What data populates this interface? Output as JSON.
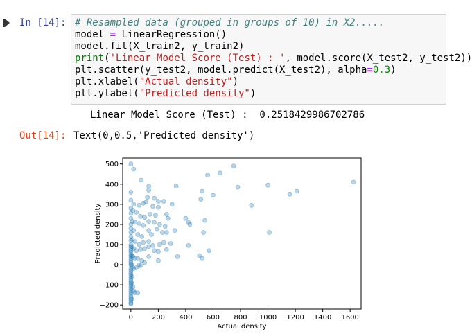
{
  "cell": {
    "in_prompt": "In [14]:",
    "code_lines": [
      [
        {
          "t": "# Resampled data (grouped in groups of 10) in X2.....",
          "c": "cm-comment"
        }
      ],
      [
        {
          "t": "model "
        },
        {
          "t": "=",
          "c": "cm-op"
        },
        {
          "t": " LinearRegression()"
        }
      ],
      [
        {
          "t": "model.fit(X_train2, y_train2)"
        }
      ],
      [
        {
          "t": "print",
          "c": "cm-builtin"
        },
        {
          "t": "("
        },
        {
          "t": "'Linear Model Score (Test) : '",
          "c": "cm-string"
        },
        {
          "t": ", model.score(X_test2, y_test2))"
        }
      ],
      [
        {
          "t": "plt.scatter(y_test2, model.predict(X_test2), alpha"
        },
        {
          "t": "=",
          "c": "cm-op"
        },
        {
          "t": "0.3",
          "c": "cm-number"
        },
        {
          "t": ")"
        }
      ],
      [
        {
          "t": "plt.xlabel("
        },
        {
          "t": "\"Actual density\"",
          "c": "cm-string"
        },
        {
          "t": ")"
        }
      ],
      [
        {
          "t": "plt.ylabel("
        },
        {
          "t": "\"Predicted density\"",
          "c": "cm-string"
        },
        {
          "t": ")"
        }
      ]
    ],
    "stdout": "Linear Model Score (Test) :  0.2518429986702786",
    "out_prompt": "Out[14]:",
    "out_text": "Text(0,0.5,'Predicted density')"
  },
  "colors": {
    "in_prompt": "#303f9f",
    "out_prompt": "#d84315",
    "marker": "#1f77b4"
  },
  "chart_data": {
    "type": "scatter",
    "xlabel": "Actual density",
    "ylabel": "Predicted density",
    "xlim": [
      -60,
      1680
    ],
    "ylim": [
      -220,
      530
    ],
    "xticks": [
      0,
      200,
      400,
      600,
      800,
      1000,
      1200,
      1400,
      1600
    ],
    "yticks": [
      -200,
      -100,
      0,
      100,
      200,
      300,
      400,
      500
    ],
    "alpha": 0.3,
    "points": [
      [
        0,
        500
      ],
      [
        20,
        475
      ],
      [
        75,
        420
      ],
      [
        0,
        360
      ],
      [
        130,
        390
      ],
      [
        130,
        370
      ],
      [
        330,
        390
      ],
      [
        560,
        445
      ],
      [
        650,
        455
      ],
      [
        750,
        490
      ],
      [
        780,
        385
      ],
      [
        1000,
        395
      ],
      [
        1625,
        410
      ],
      [
        1160,
        350
      ],
      [
        1210,
        365
      ],
      [
        120,
        335
      ],
      [
        170,
        330
      ],
      [
        200,
        315
      ],
      [
        240,
        315
      ],
      [
        300,
        300
      ],
      [
        520,
        365
      ],
      [
        510,
        325
      ],
      [
        600,
        345
      ],
      [
        880,
        295
      ],
      [
        1010,
        160
      ],
      [
        0,
        320
      ],
      [
        20,
        300
      ],
      [
        60,
        295
      ],
      [
        90,
        305
      ],
      [
        110,
        310
      ],
      [
        160,
        290
      ],
      [
        200,
        285
      ],
      [
        0,
        280
      ],
      [
        15,
        270
      ],
      [
        40,
        260
      ],
      [
        70,
        240
      ],
      [
        100,
        235
      ],
      [
        140,
        250
      ],
      [
        180,
        245
      ],
      [
        260,
        250
      ],
      [
        270,
        230
      ],
      [
        0,
        255
      ],
      [
        0,
        230
      ],
      [
        10,
        215
      ],
      [
        30,
        210
      ],
      [
        60,
        205
      ],
      [
        90,
        195
      ],
      [
        130,
        215
      ],
      [
        170,
        210
      ],
      [
        210,
        200
      ],
      [
        250,
        190
      ],
      [
        400,
        230
      ],
      [
        420,
        210
      ],
      [
        430,
        200
      ],
      [
        540,
        220
      ],
      [
        0,
        200
      ],
      [
        0,
        180
      ],
      [
        20,
        170
      ],
      [
        50,
        150
      ],
      [
        80,
        140
      ],
      [
        130,
        170
      ],
      [
        150,
        150
      ],
      [
        190,
        175
      ],
      [
        230,
        160
      ],
      [
        260,
        160
      ],
      [
        320,
        170
      ],
      [
        530,
        160
      ],
      [
        0,
        160
      ],
      [
        0,
        140
      ],
      [
        10,
        125
      ],
      [
        30,
        115
      ],
      [
        60,
        100
      ],
      [
        90,
        110
      ],
      [
        130,
        115
      ],
      [
        160,
        95
      ],
      [
        210,
        100
      ],
      [
        240,
        110
      ],
      [
        290,
        105
      ],
      [
        420,
        95
      ],
      [
        0,
        120
      ],
      [
        0,
        100
      ],
      [
        10,
        90
      ],
      [
        20,
        80
      ],
      [
        40,
        70
      ],
      [
        70,
        75
      ],
      [
        100,
        80
      ],
      [
        130,
        90
      ],
      [
        170,
        70
      ],
      [
        200,
        65
      ],
      [
        260,
        75
      ],
      [
        340,
        40
      ],
      [
        500,
        45
      ],
      [
        520,
        30
      ],
      [
        570,
        70
      ],
      [
        0,
        80
      ],
      [
        0,
        60
      ],
      [
        5,
        45
      ],
      [
        15,
        40
      ],
      [
        30,
        30
      ],
      [
        50,
        30
      ],
      [
        80,
        20
      ],
      [
        100,
        10
      ],
      [
        130,
        40
      ],
      [
        200,
        20
      ],
      [
        0,
        40
      ],
      [
        0,
        20
      ],
      [
        0,
        10
      ],
      [
        5,
        0
      ],
      [
        10,
        -10
      ],
      [
        20,
        -20
      ],
      [
        40,
        -15
      ],
      [
        60,
        0
      ],
      [
        70,
        -5
      ],
      [
        0,
        0
      ],
      [
        0,
        -20
      ],
      [
        0,
        -40
      ],
      [
        0,
        -60
      ],
      [
        0,
        -80
      ],
      [
        0,
        -100
      ],
      [
        0,
        -120
      ],
      [
        5,
        -90
      ],
      [
        10,
        -60
      ],
      [
        15,
        -110
      ],
      [
        20,
        -130
      ],
      [
        30,
        -140
      ],
      [
        50,
        -140
      ],
      [
        0,
        -140
      ],
      [
        0,
        -160
      ],
      [
        0,
        -180
      ],
      [
        0,
        -195
      ],
      [
        5,
        -170
      ],
      [
        0,
        90
      ],
      [
        0,
        70
      ],
      [
        0,
        50
      ],
      [
        0,
        30
      ],
      [
        0,
        -30
      ],
      [
        0,
        -50
      ],
      [
        0,
        -70
      ],
      [
        0,
        -90
      ],
      [
        0,
        -110
      ],
      [
        0,
        -130
      ],
      [
        0,
        -150
      ],
      [
        0,
        -170
      ],
      [
        0,
        -190
      ]
    ]
  }
}
